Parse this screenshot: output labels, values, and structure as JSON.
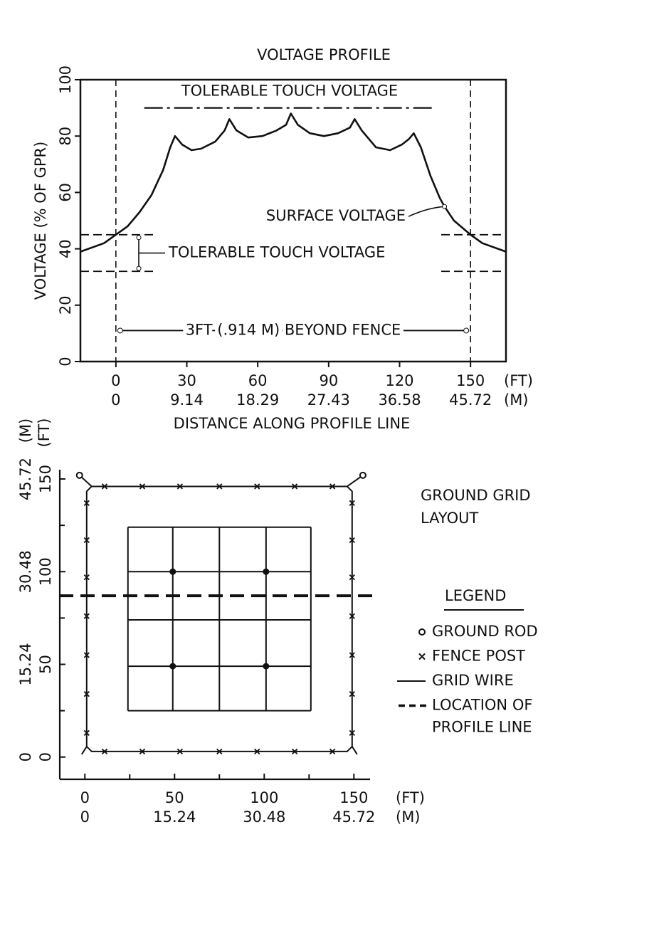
{
  "chart_data": [
    {
      "type": "line",
      "title": "VOLTAGE PROFILE",
      "ylabel": "VOLTAGE (% OF GPR)",
      "xlabel": "DISTANCE ALONG PROFILE LINE",
      "xlim": [
        -15,
        165
      ],
      "ylim": [
        0,
        100
      ],
      "xticks": [
        0,
        30,
        60,
        90,
        120,
        150
      ],
      "xticks_m": [
        0,
        {
          "value": 30,
          "label": "9.14"
        },
        {
          "value": 60,
          "label": "18.29"
        },
        {
          "value": 90,
          "label": "27.43"
        },
        {
          "value": 120,
          "label": "36.58"
        },
        {
          "value": 150,
          "label": "45.72"
        }
      ],
      "x_unit": "(FT)",
      "x2_unit": "(M)",
      "yticks": [
        0,
        20,
        40,
        60,
        80,
        100
      ],
      "series": [
        {
          "name": "SURFACE VOLTAGE",
          "color": "#111111",
          "x": [
            -15,
            -5,
            0,
            5,
            10,
            15,
            20,
            23,
            25,
            28,
            32,
            36,
            42,
            46,
            48,
            51,
            56,
            62,
            68,
            72,
            74,
            77,
            82,
            88,
            94,
            99,
            101,
            104,
            110,
            116,
            121,
            124,
            126,
            129,
            133,
            137,
            139,
            143,
            150,
            155,
            165
          ],
          "values": [
            39,
            42,
            45,
            48,
            53,
            59,
            68,
            76,
            80,
            77,
            75,
            75.5,
            78,
            82,
            86,
            82,
            79.5,
            80,
            82,
            84,
            88,
            84,
            81,
            80,
            81,
            83,
            86,
            82,
            76,
            75,
            77,
            79,
            81,
            76,
            66,
            58,
            55,
            50,
            45,
            42,
            39
          ]
        }
      ],
      "touch_voltage_line": {
        "label": "TOLERABLE TOUCH VOLTAGE",
        "value": 90,
        "x": [
          12,
          135
        ]
      },
      "touch_voltage_band": {
        "label": "TOLERABLE TOUCH VOLTAGE",
        "values": [
          32,
          45
        ]
      },
      "fence_lines": [
        0,
        150
      ],
      "beyond_fence": {
        "label": "3FT (.914 M) BEYOND FENCE",
        "value": 11
      }
    },
    {
      "type": "layout",
      "title": [
        "GROUND GRID",
        "LAYOUT"
      ],
      "xlim": [
        -14,
        159
      ],
      "ylim": [
        -12,
        155
      ],
      "xticks": [
        0,
        50,
        100,
        150
      ],
      "xticks_m": [
        0,
        {
          "value": 50,
          "label": "15.24"
        },
        {
          "value": 100,
          "label": "30.48"
        },
        {
          "value": 150,
          "label": "45.72"
        }
      ],
      "yticks": [
        0,
        50,
        100,
        150
      ],
      "yticks_m": [
        0,
        {
          "value": 50,
          "label": "15.24"
        },
        {
          "value": 100,
          "label": "30.48"
        },
        {
          "value": 150,
          "label": "45.72"
        }
      ],
      "minor_ticks": [
        25,
        75,
        125
      ],
      "x_unit": "(FT)",
      "x2_unit": "(M)",
      "fence": {
        "x": [
          1,
          149
        ],
        "y": [
          3,
          146
        ]
      },
      "fence_posts": {
        "x": [
          11,
          32,
          53,
          75,
          96,
          117,
          138,
          11,
          32,
          53,
          75,
          96,
          117,
          138,
          1,
          1,
          1,
          1,
          1,
          1,
          1,
          149,
          149,
          149,
          149,
          149,
          149,
          149
        ],
        "y": [
          146,
          146,
          146,
          146,
          146,
          146,
          146,
          3,
          3,
          3,
          3,
          3,
          3,
          3,
          13,
          34,
          55,
          76,
          97,
          117,
          137,
          13,
          34,
          55,
          76,
          97,
          117,
          137
        ]
      },
      "ground_rods": {
        "x": [
          -3,
          155
        ],
        "y": [
          152,
          152
        ]
      },
      "grid_wires": {
        "x": [
          24,
          49,
          75,
          101,
          126
        ],
        "y": [
          25,
          49,
          74,
          100,
          124
        ]
      },
      "grid_rods": {
        "x": [
          49,
          101,
          49,
          101
        ],
        "y": [
          100,
          100,
          49,
          49
        ]
      },
      "profile_line": 87,
      "legend": {
        "title": "LEGEND",
        "items": [
          {
            "symbol": "rod",
            "lines": [
              "GROUND ROD"
            ]
          },
          {
            "symbol": "post",
            "lines": [
              "FENCE POST"
            ]
          },
          {
            "symbol": "wire",
            "lines": [
              "GRID WIRE"
            ]
          },
          {
            "symbol": "profile",
            "lines": [
              "LOCATION OF",
              "PROFILE LINE"
            ]
          }
        ]
      }
    }
  ]
}
